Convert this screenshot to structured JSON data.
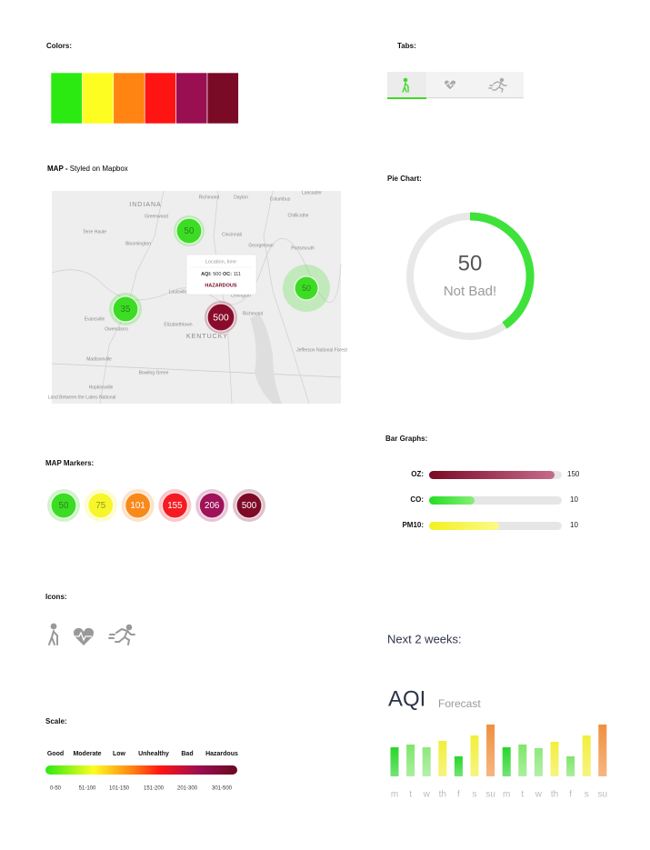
{
  "colors": {
    "label": "Colors:",
    "swatches": [
      "#2bea12",
      "#fdfd22",
      "#ff8412",
      "#ff1414",
      "#9a0f52",
      "#7a0a26"
    ]
  },
  "tabs": {
    "label": "Tabs:"
  },
  "map": {
    "title": "MAP -",
    "subtitle": "Styled on Mapbox",
    "places": [
      "INDIANA",
      "Richmond",
      "Dayton",
      "Lancaster",
      "Greenwood",
      "Columbus",
      "Chillicothe",
      "Terre Haute",
      "Bloomington",
      "Cincinnati",
      "Portsmouth",
      "Georgetown",
      "Louisville",
      "Lexington",
      "Evansville",
      "Owensboro",
      "KENTUCKY",
      "Elizabethtown",
      "Richmond",
      "Madisonville",
      "Bowling Green",
      "Hopkinsville",
      "Jefferson National Forest",
      "Land Between the Lakes National"
    ],
    "markers": [
      {
        "value": 50,
        "color": "#3ddc24"
      },
      {
        "value": 50,
        "color": "#3ddc24"
      },
      {
        "value": 35,
        "color": "#3ddc24"
      },
      {
        "value": 500,
        "color": "#8a0c2c"
      }
    ],
    "popup": {
      "heading": "Location, time",
      "aqi_label": "AQI:",
      "aqi": 500,
      "oc_label": "OC:",
      "oc": 111,
      "level": "HAZARDOUS"
    }
  },
  "pie": {
    "label": "Pie Chart:",
    "value": 50,
    "caption": "Not Bad!"
  },
  "bars": {
    "label": "Bar Graphs:",
    "rows": [
      {
        "name": "OZ:",
        "value": 150
      },
      {
        "name": "CO:",
        "value": 10
      },
      {
        "name": "PM10:",
        "value": 10
      }
    ]
  },
  "markers": {
    "label": "MAP Markers:",
    "items": [
      {
        "value": 50,
        "color": "#3ddc24"
      },
      {
        "value": 75,
        "color": "#f6f62a"
      },
      {
        "value": 101,
        "color": "#f88a1c"
      },
      {
        "value": 155,
        "color": "#f41c22"
      },
      {
        "value": 206,
        "color": "#a0125a"
      },
      {
        "value": 500,
        "color": "#7e0a28"
      }
    ]
  },
  "icons": {
    "label": "Icons:"
  },
  "scale": {
    "label": "Scale:",
    "levels": [
      "Good",
      "Moderate",
      "Low",
      "Unhealthy",
      "Bad",
      "Hazardous"
    ],
    "ranges": [
      "0-50",
      "51-100",
      "101-150",
      "151-200",
      "201-300",
      "301-500"
    ]
  },
  "forecast": {
    "heading": "Next 2 weeks:",
    "title": "AQI",
    "subtitle": "Forecast",
    "days": [
      "m",
      "t",
      "w",
      "th",
      "f",
      "s",
      "su",
      "m",
      "t",
      "w",
      "th",
      "f",
      "s",
      "su"
    ],
    "values": [
      32,
      35,
      32,
      39,
      22,
      45,
      57,
      32,
      35,
      31,
      38,
      22,
      45,
      57
    ],
    "colors": [
      "#27d62b",
      "#7fe66a",
      "#8ee87c",
      "#f2ef3c",
      "#27d62b",
      "#f2ef3c",
      "#f0903e",
      "#27d62b",
      "#7fe66a",
      "#8ee87c",
      "#f2ef3c",
      "#7fe66a",
      "#f2ef3c",
      "#f0903e"
    ]
  }
}
